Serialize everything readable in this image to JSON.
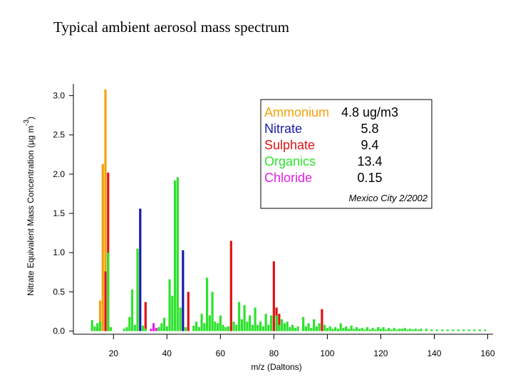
{
  "chart_data": {
    "type": "bar",
    "title": "Typical ambient aerosol mass spectrum",
    "x_label": "m/z (Daltons)",
    "y_label": {
      "text": "Nitrate Equivalent Mass Concentration (µg m",
      "sup": "-3",
      "end": ")"
    },
    "annotation": "Mexico City 2/2002",
    "xlim": [
      5,
      162
    ],
    "ylim": [
      -0.04,
      3.15
    ],
    "xticks": [
      20,
      40,
      60,
      80,
      100,
      120,
      140,
      160
    ],
    "yticks": [
      {
        "value": 0,
        "label": "0.0"
      },
      0.5,
      {
        "value": 1,
        "label": "1.0"
      },
      1.5,
      {
        "value": 2,
        "label": "2.0"
      },
      2.5,
      {
        "value": 3,
        "label": "3.0"
      }
    ],
    "series": [
      {
        "name": "Ammonium",
        "amount": "4.8 ug/m3",
        "color": "#f2a20c",
        "x": [
          15,
          16,
          17
        ],
        "values": [
          0.39,
          2.13,
          3.08
        ]
      },
      {
        "name": "Nitrate",
        "amount": "5.8",
        "color": "#1c1ca8",
        "x": [
          14,
          30,
          46
        ],
        "values": [
          0.04,
          1.56,
          1.03
        ]
      },
      {
        "name": "Sulphate",
        "amount": "9.4",
        "color": "#e01414",
        "x": [
          17,
          18,
          32,
          48,
          64,
          80,
          81,
          82,
          98
        ],
        "values": [
          0.76,
          2.02,
          0.37,
          0.5,
          1.15,
          0.89,
          0.3,
          0.22,
          0.28
        ]
      },
      {
        "name": "Organics",
        "amount": "13.4",
        "color": "#2ee22e",
        "x": [
          12,
          13,
          14,
          15,
          18,
          19,
          24,
          25,
          26,
          27,
          28,
          29,
          31,
          32,
          37,
          38,
          39,
          40,
          41,
          42,
          43,
          44,
          45,
          47,
          50,
          51,
          52,
          53,
          54,
          55,
          56,
          57,
          58,
          59,
          60,
          61,
          62,
          63,
          65,
          66,
          67,
          68,
          69,
          70,
          71,
          72,
          73,
          74,
          75,
          76,
          77,
          78,
          79,
          81,
          82,
          83,
          84,
          85,
          86,
          87,
          88,
          89,
          91,
          92,
          93,
          94,
          95,
          96,
          97,
          99,
          100,
          101,
          102,
          103,
          104,
          105,
          106,
          107,
          108,
          109,
          110,
          111,
          112,
          113,
          114,
          115,
          116,
          117,
          118,
          119,
          120,
          121,
          122,
          123,
          124,
          125,
          126,
          127,
          128,
          129,
          130,
          131,
          132,
          133,
          134,
          135,
          137,
          139,
          141,
          143,
          145,
          147,
          149,
          151,
          153,
          155,
          157,
          159
        ],
        "values": [
          0.14,
          0.06,
          0.1,
          0.12,
          1.0,
          0.05,
          0.03,
          0.05,
          0.18,
          0.53,
          0.08,
          1.05,
          0.07,
          0.03,
          0.05,
          0.1,
          0.17,
          0.06,
          0.66,
          0.45,
          1.92,
          1.96,
          0.3,
          0.05,
          0.07,
          0.12,
          0.05,
          0.22,
          0.1,
          0.68,
          0.2,
          0.5,
          0.12,
          0.1,
          0.2,
          0.08,
          0.05,
          0.06,
          0.12,
          0.08,
          0.37,
          0.15,
          0.33,
          0.12,
          0.2,
          0.08,
          0.3,
          0.08,
          0.12,
          0.06,
          0.22,
          0.08,
          0.2,
          0.2,
          0.08,
          0.15,
          0.1,
          0.12,
          0.05,
          0.08,
          0.04,
          0.06,
          0.18,
          0.06,
          0.1,
          0.04,
          0.15,
          0.06,
          0.1,
          0.08,
          0.04,
          0.06,
          0.03,
          0.05,
          0.03,
          0.1,
          0.04,
          0.06,
          0.03,
          0.07,
          0.03,
          0.05,
          0.03,
          0.04,
          0.02,
          0.05,
          0.02,
          0.04,
          0.02,
          0.05,
          0.03,
          0.05,
          0.02,
          0.04,
          0.02,
          0.04,
          0.02,
          0.03,
          0.03,
          0.04,
          0.02,
          0.03,
          0.02,
          0.03,
          0.02,
          0.03,
          0.03,
          0.02,
          0.02,
          0.02,
          0.02,
          0.02,
          0.02,
          0.02,
          0.02,
          0.02,
          0.02,
          0.02
        ]
      },
      {
        "name": "Chloride",
        "amount": "0.15",
        "color": "#e020e0",
        "x": [
          34,
          35,
          36
        ],
        "values": [
          0.03,
          0.1,
          0.04
        ]
      }
    ]
  }
}
